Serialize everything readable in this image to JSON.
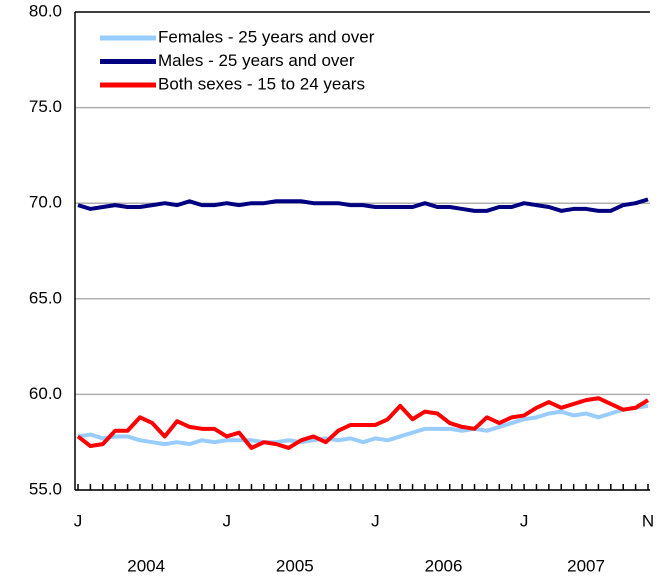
{
  "chart_data": {
    "type": "line",
    "categories": [
      "J",
      null,
      null,
      null,
      null,
      null,
      null,
      null,
      null,
      null,
      null,
      null,
      "J",
      null,
      null,
      null,
      null,
      null,
      null,
      null,
      null,
      null,
      null,
      null,
      "J",
      null,
      null,
      null,
      null,
      null,
      null,
      null,
      null,
      null,
      null,
      null,
      "J",
      null,
      null,
      null,
      null,
      null,
      null,
      null,
      null,
      null,
      "N"
    ],
    "year_labels": [
      "2004",
      "2005",
      "2006",
      "2007"
    ],
    "series": [
      {
        "name": "Females - 25 years and over",
        "color": "#99ccff",
        "values": [
          57.8,
          57.9,
          57.7,
          57.8,
          57.8,
          57.6,
          57.5,
          57.4,
          57.5,
          57.4,
          57.6,
          57.5,
          57.6,
          57.6,
          57.6,
          57.5,
          57.5,
          57.6,
          57.5,
          57.6,
          57.7,
          57.6,
          57.7,
          57.5,
          57.7,
          57.6,
          57.8,
          58.0,
          58.2,
          58.2,
          58.2,
          58.1,
          58.2,
          58.1,
          58.3,
          58.5,
          58.7,
          58.8,
          59.0,
          59.1,
          58.9,
          59.0,
          58.8,
          59.0,
          59.2,
          59.3,
          59.4
        ]
      },
      {
        "name": "Males - 25 years and over",
        "color": "#000080",
        "values": [
          69.9,
          69.7,
          69.8,
          69.9,
          69.8,
          69.8,
          69.9,
          70.0,
          69.9,
          70.1,
          69.9,
          69.9,
          70.0,
          69.9,
          70.0,
          70.0,
          70.1,
          70.1,
          70.1,
          70.0,
          70.0,
          70.0,
          69.9,
          69.9,
          69.8,
          69.8,
          69.8,
          69.8,
          70.0,
          69.8,
          69.8,
          69.7,
          69.6,
          69.6,
          69.8,
          69.8,
          70.0,
          69.9,
          69.8,
          69.6,
          69.7,
          69.7,
          69.6,
          69.6,
          69.9,
          70.0,
          70.2
        ]
      },
      {
        "name": "Both sexes - 15 to 24 years",
        "color": "#ff0000",
        "values": [
          57.8,
          57.3,
          57.4,
          58.1,
          58.1,
          58.8,
          58.5,
          57.8,
          58.6,
          58.3,
          58.2,
          58.2,
          57.8,
          58.0,
          57.2,
          57.5,
          57.4,
          57.2,
          57.6,
          57.8,
          57.5,
          58.1,
          58.4,
          58.4,
          58.4,
          58.7,
          59.4,
          58.7,
          59.1,
          59.0,
          58.5,
          58.3,
          58.2,
          58.8,
          58.5,
          58.8,
          58.9,
          59.3,
          59.6,
          59.3,
          59.5,
          59.7,
          59.8,
          59.5,
          59.2,
          59.3,
          59.7
        ]
      }
    ],
    "ylim": [
      55,
      80
    ],
    "yticks": [
      {
        "value": 55,
        "label": "55.0"
      },
      {
        "value": 60,
        "label": "60.0"
      },
      {
        "value": 65,
        "label": "65.0"
      },
      {
        "value": 70,
        "label": "70.0"
      },
      {
        "value": 75,
        "label": "75.0"
      },
      {
        "value": 80,
        "label": "80.0"
      }
    ],
    "grid": true,
    "legend": "top-left"
  }
}
